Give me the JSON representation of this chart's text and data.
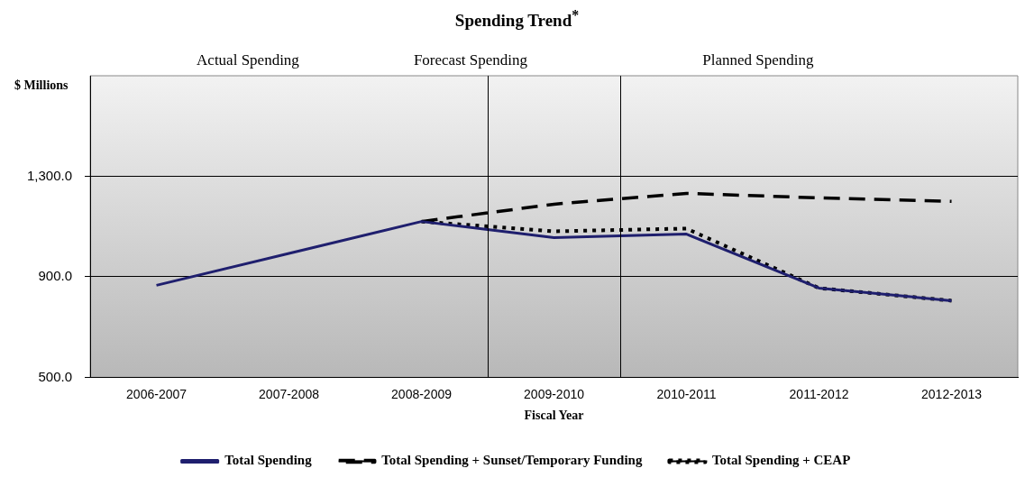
{
  "chart_data": {
    "type": "line",
    "title": "Spending Trend$^{*}$",
    "xlabel": "Fiscal Year",
    "ylabel": "$ Millions",
    "categories": [
      "2006-2007",
      "2007-2008",
      "2008-2009",
      "2009-2010",
      "2010-2011",
      "2011-2012",
      "2012-2013"
    ],
    "series": [
      {
        "name": "Total Spending",
        "color": "#1f1f6e",
        "line_style": "solid",
        "values": [
          866,
          993,
          1120,
          1056,
          1070,
          855,
          805
        ]
      },
      {
        "name": "Total Spending + Sunset/Temporary Funding",
        "color": "#000000",
        "line_style": "dashed",
        "values": [
          null,
          null,
          1120,
          1189,
          1232,
          1214,
          1200
        ]
      },
      {
        "name": "Total Spending + CEAP",
        "color": "#000000",
        "line_style": "dotted",
        "values": [
          null,
          null,
          1120,
          1081,
          1092,
          855,
          805
        ]
      }
    ],
    "annotations": [
      "Actual Spending",
      "Forecast Spending",
      "Planned Spending"
    ],
    "ylim": [
      500,
      1700
    ],
    "yticks": [
      {
        "value": 500,
        "label": "500.0"
      },
      {
        "value": 900,
        "label": "900.0"
      },
      {
        "value": 1300,
        "label": "1,300.0"
      }
    ],
    "grid": "y",
    "legend": "bottom",
    "marker": "none"
  }
}
